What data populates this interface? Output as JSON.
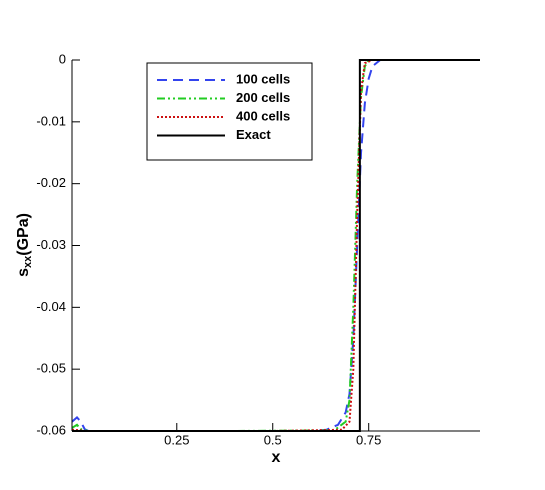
{
  "chart_data": {
    "type": "line",
    "xlabel": "x",
    "ylabel": {
      "main": "s",
      "sub": "xx",
      "unit": "(GPa)"
    },
    "xlim": [
      -0.023,
      1.04
    ],
    "ylim": [
      -0.06,
      0
    ],
    "xticks": [
      0.25,
      0.5,
      0.75
    ],
    "yticks": [
      0,
      -0.01,
      -0.02,
      -0.03,
      -0.04,
      -0.05,
      -0.06
    ],
    "series": [
      {
        "name": "100 cells",
        "color": "#3344ee",
        "dash": "10,6",
        "x": [
          -0.023,
          -0.01,
          0,
          0.01,
          0.02,
          0.05,
          0.2,
          0.4,
          0.6,
          0.64,
          0.67,
          0.69,
          0.7,
          0.71,
          0.72,
          0.73,
          0.74,
          0.75,
          0.76,
          0.78,
          0.8,
          1.04
        ],
        "values": [
          -0.0585,
          -0.0578,
          -0.0585,
          -0.0597,
          -0.06,
          -0.06,
          -0.06,
          -0.06,
          -0.06,
          -0.0598,
          -0.059,
          -0.057,
          -0.054,
          -0.045,
          -0.03,
          -0.015,
          -0.007,
          -0.003,
          -0.001,
          0,
          0,
          0
        ]
      },
      {
        "name": "200 cells",
        "color": "#22cc22",
        "dash": "8,3,2,3,2,3",
        "x": [
          -0.023,
          -0.01,
          0,
          0.02,
          0.4,
          0.66,
          0.69,
          0.7,
          0.71,
          0.72,
          0.73,
          0.74,
          0.75,
          0.77,
          1.04
        ],
        "values": [
          -0.0595,
          -0.059,
          -0.0597,
          -0.06,
          -0.06,
          -0.0599,
          -0.0585,
          -0.055,
          -0.04,
          -0.02,
          -0.006,
          -0.001,
          0,
          0,
          0
        ]
      },
      {
        "name": "400 cells",
        "color": "#cc1111",
        "dash": "2,2",
        "x": [
          -0.023,
          0,
          0.01,
          0.5,
          0.68,
          0.7,
          0.71,
          0.72,
          0.73,
          0.74,
          0.76,
          1.04
        ],
        "values": [
          -0.0598,
          -0.0599,
          -0.06,
          -0.06,
          -0.0598,
          -0.0585,
          -0.05,
          -0.025,
          -0.005,
          -0.0005,
          0,
          0
        ]
      },
      {
        "name": "Exact",
        "color": "#000000",
        "dash": "none",
        "x": [
          -0.023,
          0.727,
          0.727,
          1.04
        ],
        "values": [
          -0.06,
          -0.06,
          0,
          0
        ]
      }
    ]
  }
}
